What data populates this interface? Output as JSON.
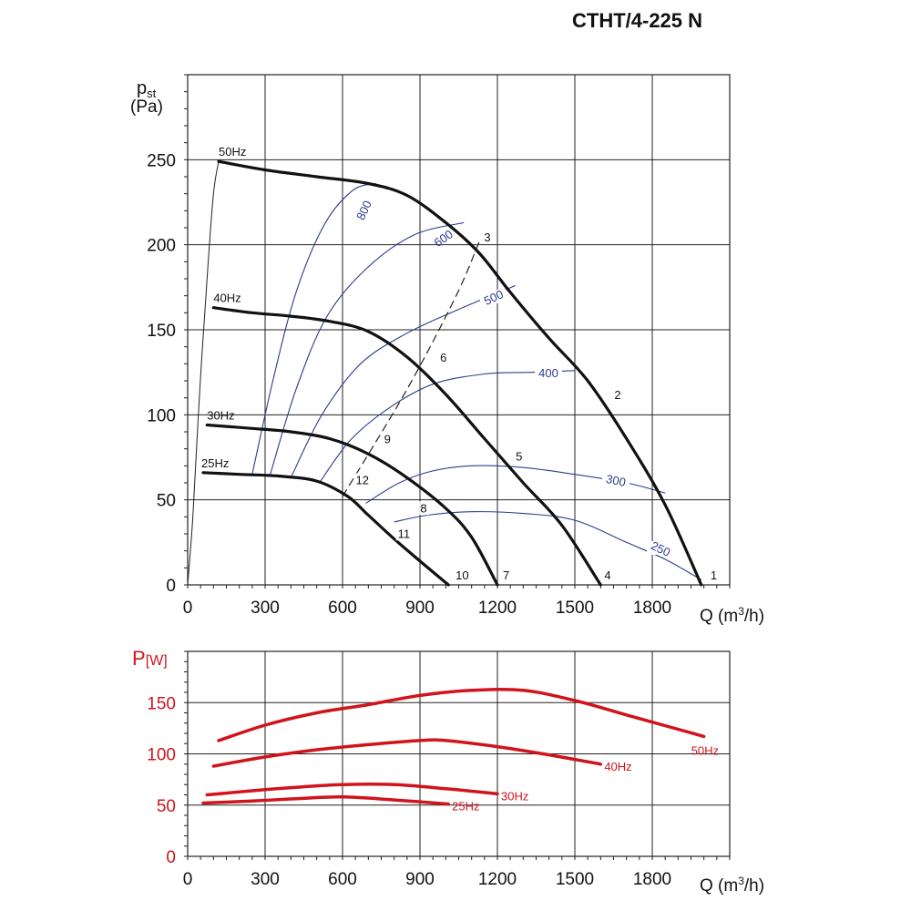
{
  "title": "CTHT/4-225 N",
  "chart_data": [
    {
      "type": "line",
      "ylabel_symbol": "p",
      "ylabel_sub": "st",
      "ylabel_unit": "(Pa)",
      "xlabel_prefix": "Q (m",
      "xlabel_sup": "3",
      "xlabel_suffix": "/h)",
      "xlim": [
        0,
        2100
      ],
      "ylim": [
        0,
        300
      ],
      "xticks": [
        0,
        300,
        600,
        900,
        1200,
        1500,
        1800
      ],
      "yticks": [
        0,
        50,
        100,
        150,
        200,
        250
      ],
      "grid": true,
      "colors": {
        "fan_curve": "#111111",
        "iso_curve": "#2a3d8f",
        "system_line": "#222222"
      },
      "series": [
        {
          "name": "50Hz",
          "points": [
            [
              120,
              249
            ],
            [
              300,
              244
            ],
            [
              500,
              240
            ],
            [
              700,
              236
            ],
            [
              850,
              229
            ],
            [
              1000,
              213
            ],
            [
              1130,
              195
            ],
            [
              1250,
              172
            ],
            [
              1400,
              145
            ],
            [
              1550,
              120
            ],
            [
              1700,
              86
            ],
            [
              1850,
              47
            ],
            [
              1990,
              0
            ]
          ]
        },
        {
          "name": "40Hz",
          "points": [
            [
              100,
              163
            ],
            [
              250,
              160
            ],
            [
              400,
              158
            ],
            [
              550,
              155
            ],
            [
              700,
              149
            ],
            [
              850,
              134
            ],
            [
              1000,
              112
            ],
            [
              1150,
              86
            ],
            [
              1300,
              60
            ],
            [
              1450,
              35
            ],
            [
              1600,
              0
            ]
          ]
        },
        {
          "name": "30Hz",
          "points": [
            [
              75,
              94
            ],
            [
              250,
              92
            ],
            [
              400,
              90
            ],
            [
              550,
              86
            ],
            [
              700,
              77
            ],
            [
              850,
              63
            ],
            [
              1000,
              45
            ],
            [
              1100,
              28
            ],
            [
              1200,
              0
            ]
          ]
        },
        {
          "name": "25Hz",
          "points": [
            [
              60,
              66
            ],
            [
              200,
              65
            ],
            [
              350,
              64
            ],
            [
              500,
              61
            ],
            [
              620,
              52
            ],
            [
              700,
              41
            ],
            [
              800,
              27
            ],
            [
              900,
              14
            ],
            [
              1010,
              0
            ]
          ]
        }
      ],
      "iso_curves": [
        {
          "label": "800",
          "points": [
            [
              250,
              65
            ],
            [
              330,
              120
            ],
            [
              420,
              172
            ],
            [
              530,
              212
            ],
            [
              640,
              232
            ],
            [
              730,
              236
            ]
          ]
        },
        {
          "label": "600",
          "points": [
            [
              320,
              65
            ],
            [
              420,
              115
            ],
            [
              540,
              158
            ],
            [
              700,
              187
            ],
            [
              880,
              206
            ],
            [
              1070,
              213
            ]
          ]
        },
        {
          "label": "500",
          "points": [
            [
              400,
              63
            ],
            [
              520,
              100
            ],
            [
              670,
              130
            ],
            [
              850,
              148
            ],
            [
              1050,
              162
            ],
            [
              1270,
              176
            ]
          ]
        },
        {
          "label": "400",
          "points": [
            [
              510,
              60
            ],
            [
              630,
              85
            ],
            [
              780,
              104
            ],
            [
              950,
              118
            ],
            [
              1150,
              124
            ],
            [
              1330,
              125
            ],
            [
              1500,
              126
            ]
          ]
        },
        {
          "label": "300",
          "points": [
            [
              690,
              48
            ],
            [
              820,
              60
            ],
            [
              950,
              67
            ],
            [
              1100,
              70
            ],
            [
              1300,
              69
            ],
            [
              1500,
              65
            ],
            [
              1700,
              60
            ],
            [
              1850,
              54
            ]
          ]
        },
        {
          "label": "250",
          "points": [
            [
              800,
              37
            ],
            [
              930,
              41
            ],
            [
              1100,
              43
            ],
            [
              1300,
              42
            ],
            [
              1500,
              38
            ],
            [
              1700,
              25
            ],
            [
              1850,
              15
            ],
            [
              1990,
              3
            ]
          ]
        }
      ],
      "system_line": [
        [
          600,
          52
        ],
        [
          850,
          115
        ],
        [
          1040,
          170
        ],
        [
          1130,
          202
        ]
      ],
      "op_points": [
        {
          "label": "1",
          "x": 1990,
          "y": 0
        },
        {
          "label": "2",
          "x": 1625,
          "y": 106
        },
        {
          "label": "3",
          "x": 1120,
          "y": 202
        },
        {
          "label": "4",
          "x": 1600,
          "y": 0
        },
        {
          "label": "5",
          "x": 1250,
          "y": 70
        },
        {
          "label": "6",
          "x": 950,
          "y": 128
        },
        {
          "label": "7",
          "x": 1200,
          "y": 0
        },
        {
          "label": "8",
          "x": 880,
          "y": 47
        },
        {
          "label": "9",
          "x": 740,
          "y": 80
        },
        {
          "label": "10",
          "x": 1010,
          "y": 0
        },
        {
          "label": "11",
          "x": 800,
          "y": 32
        },
        {
          "label": "12",
          "x": 630,
          "y": 56
        }
      ]
    },
    {
      "type": "line",
      "ylabel_symbol": "P",
      "ylabel_unit": "[W]",
      "xlabel_prefix": "Q (m",
      "xlabel_sup": "3",
      "xlabel_suffix": "/h)",
      "xlim": [
        0,
        2100
      ],
      "ylim": [
        0,
        200
      ],
      "xticks": [
        0,
        300,
        600,
        900,
        1200,
        1500,
        1800
      ],
      "yticks": [
        0,
        50,
        100,
        150
      ],
      "grid": true,
      "color": "#d0141c",
      "series": [
        {
          "name": "50Hz",
          "points": [
            [
              120,
              113
            ],
            [
              300,
              128
            ],
            [
              500,
              140
            ],
            [
              700,
              148
            ],
            [
              900,
              157
            ],
            [
              1100,
              162
            ],
            [
              1300,
              162
            ],
            [
              1500,
              152
            ],
            [
              1700,
              138
            ],
            [
              1900,
              124
            ],
            [
              2000,
              117
            ]
          ]
        },
        {
          "name": "40Hz",
          "points": [
            [
              100,
              88
            ],
            [
              300,
              97
            ],
            [
              500,
              104
            ],
            [
              700,
              109
            ],
            [
              900,
              113
            ],
            [
              1000,
              113
            ],
            [
              1200,
              107
            ],
            [
              1400,
              99
            ],
            [
              1600,
              90
            ]
          ]
        },
        {
          "name": "30Hz",
          "points": [
            [
              75,
              60
            ],
            [
              250,
              64
            ],
            [
              400,
              67
            ],
            [
              600,
              70
            ],
            [
              800,
              70
            ],
            [
              1000,
              66
            ],
            [
              1200,
              61
            ]
          ]
        },
        {
          "name": "25Hz",
          "points": [
            [
              60,
              52
            ],
            [
              250,
              54
            ],
            [
              400,
              56
            ],
            [
              600,
              58
            ],
            [
              800,
              55
            ],
            [
              1010,
              51
            ]
          ]
        }
      ]
    }
  ]
}
